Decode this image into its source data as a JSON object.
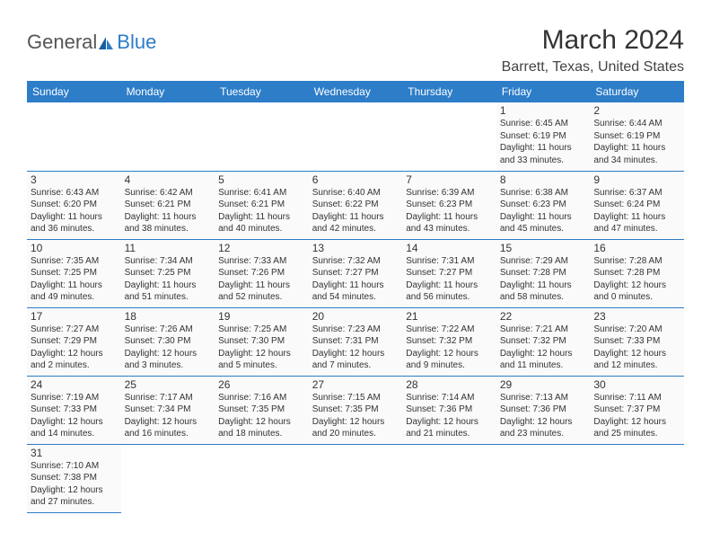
{
  "logo": {
    "text1": "General",
    "text2": "Blue"
  },
  "title": "March 2024",
  "location": "Barrett, Texas, United States",
  "colors": {
    "header_bg": "#2d7dc8",
    "header_text": "#ffffff",
    "cell_bg": "#fafafa",
    "border": "#2d7dc8",
    "text": "#333333"
  },
  "dayHeaders": [
    "Sunday",
    "Monday",
    "Tuesday",
    "Wednesday",
    "Thursday",
    "Friday",
    "Saturday"
  ],
  "startOffset": 5,
  "days": [
    {
      "n": 1,
      "sr": "6:45 AM",
      "ss": "6:19 PM",
      "dl": "11 hours and 33 minutes."
    },
    {
      "n": 2,
      "sr": "6:44 AM",
      "ss": "6:19 PM",
      "dl": "11 hours and 34 minutes."
    },
    {
      "n": 3,
      "sr": "6:43 AM",
      "ss": "6:20 PM",
      "dl": "11 hours and 36 minutes."
    },
    {
      "n": 4,
      "sr": "6:42 AM",
      "ss": "6:21 PM",
      "dl": "11 hours and 38 minutes."
    },
    {
      "n": 5,
      "sr": "6:41 AM",
      "ss": "6:21 PM",
      "dl": "11 hours and 40 minutes."
    },
    {
      "n": 6,
      "sr": "6:40 AM",
      "ss": "6:22 PM",
      "dl": "11 hours and 42 minutes."
    },
    {
      "n": 7,
      "sr": "6:39 AM",
      "ss": "6:23 PM",
      "dl": "11 hours and 43 minutes."
    },
    {
      "n": 8,
      "sr": "6:38 AM",
      "ss": "6:23 PM",
      "dl": "11 hours and 45 minutes."
    },
    {
      "n": 9,
      "sr": "6:37 AM",
      "ss": "6:24 PM",
      "dl": "11 hours and 47 minutes."
    },
    {
      "n": 10,
      "sr": "7:35 AM",
      "ss": "7:25 PM",
      "dl": "11 hours and 49 minutes."
    },
    {
      "n": 11,
      "sr": "7:34 AM",
      "ss": "7:25 PM",
      "dl": "11 hours and 51 minutes."
    },
    {
      "n": 12,
      "sr": "7:33 AM",
      "ss": "7:26 PM",
      "dl": "11 hours and 52 minutes."
    },
    {
      "n": 13,
      "sr": "7:32 AM",
      "ss": "7:27 PM",
      "dl": "11 hours and 54 minutes."
    },
    {
      "n": 14,
      "sr": "7:31 AM",
      "ss": "7:27 PM",
      "dl": "11 hours and 56 minutes."
    },
    {
      "n": 15,
      "sr": "7:29 AM",
      "ss": "7:28 PM",
      "dl": "11 hours and 58 minutes."
    },
    {
      "n": 16,
      "sr": "7:28 AM",
      "ss": "7:28 PM",
      "dl": "12 hours and 0 minutes."
    },
    {
      "n": 17,
      "sr": "7:27 AM",
      "ss": "7:29 PM",
      "dl": "12 hours and 2 minutes."
    },
    {
      "n": 18,
      "sr": "7:26 AM",
      "ss": "7:30 PM",
      "dl": "12 hours and 3 minutes."
    },
    {
      "n": 19,
      "sr": "7:25 AM",
      "ss": "7:30 PM",
      "dl": "12 hours and 5 minutes."
    },
    {
      "n": 20,
      "sr": "7:23 AM",
      "ss": "7:31 PM",
      "dl": "12 hours and 7 minutes."
    },
    {
      "n": 21,
      "sr": "7:22 AM",
      "ss": "7:32 PM",
      "dl": "12 hours and 9 minutes."
    },
    {
      "n": 22,
      "sr": "7:21 AM",
      "ss": "7:32 PM",
      "dl": "12 hours and 11 minutes."
    },
    {
      "n": 23,
      "sr": "7:20 AM",
      "ss": "7:33 PM",
      "dl": "12 hours and 12 minutes."
    },
    {
      "n": 24,
      "sr": "7:19 AM",
      "ss": "7:33 PM",
      "dl": "12 hours and 14 minutes."
    },
    {
      "n": 25,
      "sr": "7:17 AM",
      "ss": "7:34 PM",
      "dl": "12 hours and 16 minutes."
    },
    {
      "n": 26,
      "sr": "7:16 AM",
      "ss": "7:35 PM",
      "dl": "12 hours and 18 minutes."
    },
    {
      "n": 27,
      "sr": "7:15 AM",
      "ss": "7:35 PM",
      "dl": "12 hours and 20 minutes."
    },
    {
      "n": 28,
      "sr": "7:14 AM",
      "ss": "7:36 PM",
      "dl": "12 hours and 21 minutes."
    },
    {
      "n": 29,
      "sr": "7:13 AM",
      "ss": "7:36 PM",
      "dl": "12 hours and 23 minutes."
    },
    {
      "n": 30,
      "sr": "7:11 AM",
      "ss": "7:37 PM",
      "dl": "12 hours and 25 minutes."
    },
    {
      "n": 31,
      "sr": "7:10 AM",
      "ss": "7:38 PM",
      "dl": "12 hours and 27 minutes."
    }
  ]
}
